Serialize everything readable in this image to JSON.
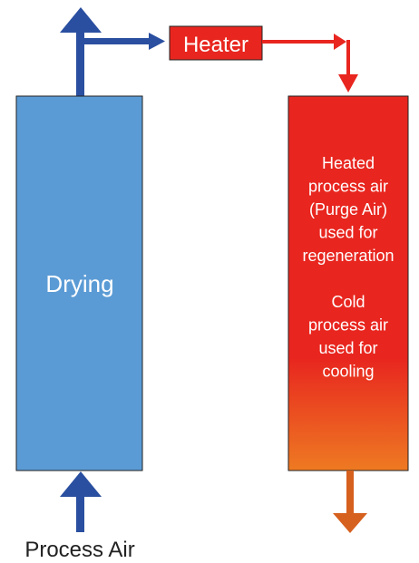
{
  "nodes": [
    {
      "label": "Drying"
    },
    {
      "label": "Heater"
    },
    {
      "label_lines": [
        "Heated",
        "process air",
        "(Purge Air)",
        "used for",
        "regeneration",
        "",
        "Cold",
        "process air",
        "used for",
        "cooling"
      ]
    }
  ],
  "input_label": "Process Air"
}
